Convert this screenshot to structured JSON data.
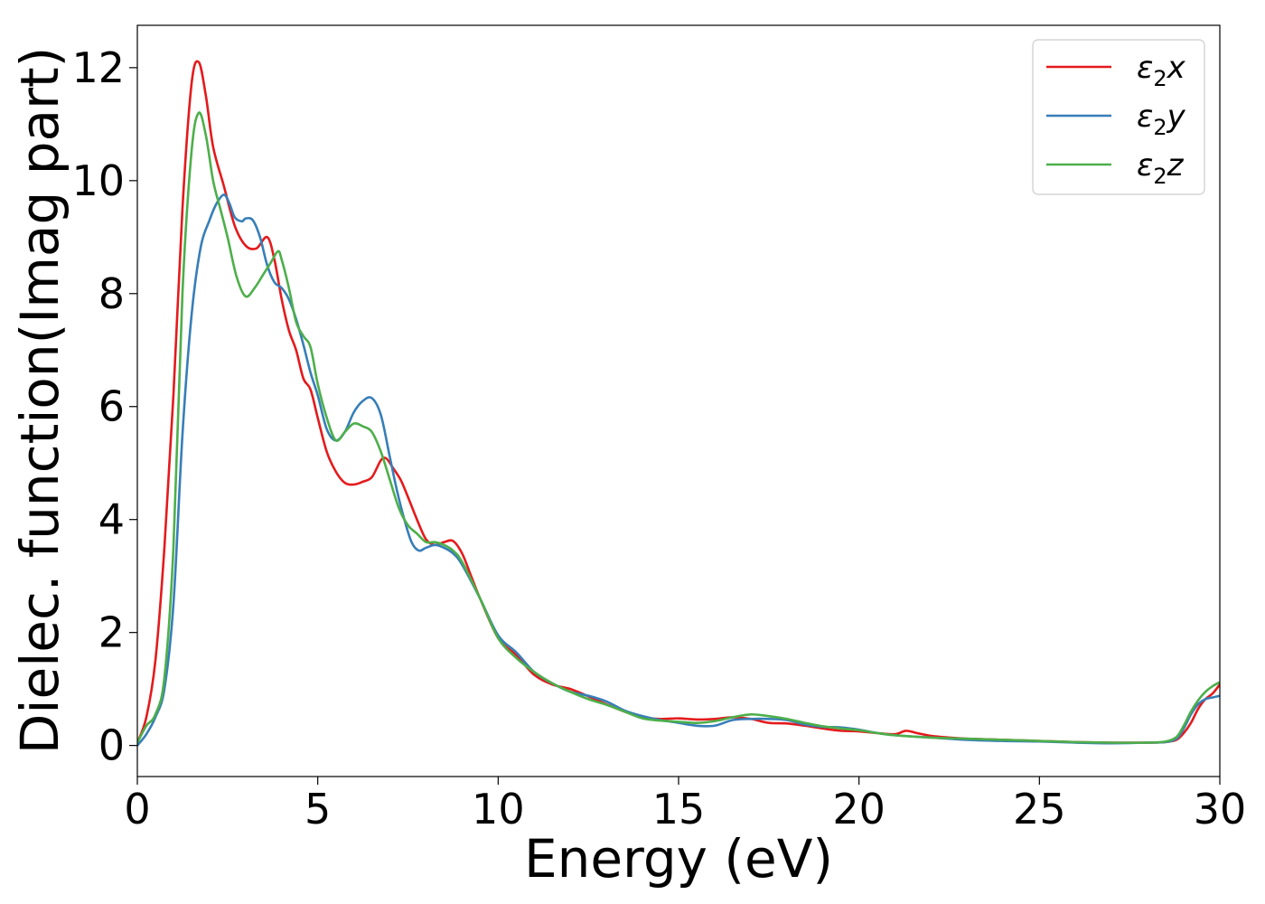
{
  "chart_data": {
    "type": "line",
    "title": "",
    "xlabel": "Energy (eV)",
    "ylabel": "Dielec. function(Imag part)",
    "xlim": [
      0,
      30
    ],
    "ylim": [
      -0.55,
      12.75
    ],
    "xticks": [
      0,
      5,
      10,
      15,
      20,
      25,
      30
    ],
    "xtick_labels": [
      "0",
      "5",
      "10",
      "15",
      "20",
      "25",
      "30"
    ],
    "yticks": [
      0,
      2,
      4,
      6,
      8,
      10,
      12
    ],
    "ytick_labels": [
      "0",
      "2",
      "4",
      "6",
      "8",
      "10",
      "12"
    ],
    "grid": false,
    "legend_position": "top-right",
    "series": [
      {
        "name": "ε2x",
        "legend_base": "ε",
        "legend_sub": "2",
        "legend_suffix": "x",
        "color": "#e41a1c",
        "x": [
          0,
          0.25,
          0.5,
          0.75,
          1.0,
          1.25,
          1.5,
          1.7,
          1.9,
          2.1,
          2.4,
          2.7,
          3.0,
          3.3,
          3.6,
          3.8,
          4.0,
          4.2,
          4.4,
          4.6,
          4.8,
          5.0,
          5.25,
          5.5,
          5.75,
          6.0,
          6.25,
          6.5,
          6.75,
          6.9,
          7.1,
          7.3,
          7.5,
          7.75,
          8.0,
          8.25,
          8.5,
          8.75,
          9.0,
          9.25,
          9.5,
          10.0,
          10.5,
          11.0,
          11.5,
          12.0,
          12.5,
          13.0,
          13.5,
          14.0,
          14.5,
          15.0,
          15.5,
          16.0,
          16.5,
          17.0,
          17.5,
          18.0,
          18.5,
          19.0,
          19.5,
          20.0,
          20.5,
          21.0,
          21.3,
          21.6,
          22.0,
          22.5,
          23.0,
          24.0,
          25.0,
          26.0,
          27.0,
          28.0,
          28.5,
          28.8,
          29.0,
          29.2,
          29.4,
          29.6,
          29.8,
          30.0
        ],
        "y": [
          0.05,
          0.5,
          1.5,
          3.5,
          6.2,
          9.5,
          11.7,
          12.1,
          11.5,
          10.6,
          9.9,
          9.2,
          8.85,
          8.8,
          9.0,
          8.6,
          7.9,
          7.35,
          7.0,
          6.5,
          6.3,
          5.8,
          5.2,
          4.85,
          4.65,
          4.62,
          4.67,
          4.75,
          5.05,
          5.08,
          4.9,
          4.7,
          4.4,
          4.0,
          3.65,
          3.55,
          3.6,
          3.62,
          3.4,
          3.0,
          2.6,
          1.9,
          1.6,
          1.25,
          1.08,
          1.0,
          0.87,
          0.73,
          0.6,
          0.5,
          0.47,
          0.48,
          0.46,
          0.47,
          0.5,
          0.47,
          0.4,
          0.39,
          0.35,
          0.3,
          0.26,
          0.25,
          0.22,
          0.2,
          0.26,
          0.22,
          0.17,
          0.14,
          0.12,
          0.1,
          0.08,
          0.06,
          0.05,
          0.05,
          0.06,
          0.1,
          0.22,
          0.4,
          0.65,
          0.82,
          0.92,
          1.08
        ]
      },
      {
        "name": "ε2y",
        "legend_base": "ε",
        "legend_sub": "2",
        "legend_suffix": "y",
        "color": "#377eb8",
        "x": [
          0,
          0.25,
          0.5,
          0.75,
          1.0,
          1.25,
          1.5,
          1.75,
          2.0,
          2.2,
          2.4,
          2.55,
          2.7,
          2.9,
          3.0,
          3.2,
          3.4,
          3.6,
          3.8,
          4.0,
          4.2,
          4.4,
          4.6,
          4.8,
          5.0,
          5.25,
          5.5,
          5.75,
          6.0,
          6.25,
          6.5,
          6.75,
          7.0,
          7.2,
          7.4,
          7.6,
          7.8,
          8.0,
          8.25,
          8.5,
          8.75,
          9.0,
          9.5,
          10.0,
          10.5,
          11.0,
          11.5,
          12.0,
          12.5,
          13.0,
          13.5,
          14.0,
          14.5,
          15.0,
          15.5,
          16.0,
          16.5,
          17.0,
          17.5,
          18.0,
          18.5,
          19.0,
          19.5,
          20.0,
          20.5,
          21.0,
          22.0,
          23.0,
          24.0,
          25.0,
          26.0,
          27.0,
          28.0,
          28.5,
          28.8,
          29.0,
          29.2,
          29.4,
          29.6,
          29.8,
          30.0
        ],
        "y": [
          0.0,
          0.2,
          0.5,
          1.0,
          2.5,
          5.5,
          7.6,
          8.8,
          9.3,
          9.6,
          9.75,
          9.6,
          9.35,
          9.28,
          9.33,
          9.3,
          9.0,
          8.5,
          8.2,
          8.1,
          7.9,
          7.55,
          7.1,
          6.6,
          6.2,
          5.6,
          5.4,
          5.55,
          5.9,
          6.1,
          6.15,
          5.85,
          5.1,
          4.5,
          4.0,
          3.6,
          3.45,
          3.5,
          3.55,
          3.5,
          3.4,
          3.2,
          2.6,
          1.95,
          1.65,
          1.3,
          1.1,
          0.95,
          0.88,
          0.78,
          0.62,
          0.52,
          0.45,
          0.4,
          0.35,
          0.35,
          0.45,
          0.47,
          0.47,
          0.45,
          0.37,
          0.33,
          0.32,
          0.28,
          0.22,
          0.18,
          0.14,
          0.1,
          0.08,
          0.07,
          0.05,
          0.04,
          0.05,
          0.06,
          0.12,
          0.3,
          0.55,
          0.73,
          0.82,
          0.85,
          0.88
        ]
      },
      {
        "name": "ε2z",
        "legend_base": "ε",
        "legend_sub": "2",
        "legend_suffix": "z",
        "color": "#4daf4a",
        "x": [
          0,
          0.25,
          0.5,
          0.75,
          1.0,
          1.25,
          1.5,
          1.7,
          1.9,
          2.1,
          2.3,
          2.5,
          2.75,
          3.0,
          3.25,
          3.5,
          3.7,
          3.9,
          4.0,
          4.2,
          4.4,
          4.6,
          4.8,
          5.0,
          5.25,
          5.5,
          5.75,
          6.0,
          6.25,
          6.5,
          6.75,
          7.0,
          7.25,
          7.5,
          7.75,
          8.0,
          8.25,
          8.5,
          8.75,
          9.0,
          9.5,
          10.0,
          10.5,
          11.0,
          11.5,
          12.0,
          12.5,
          13.0,
          13.5,
          14.0,
          14.5,
          15.0,
          15.5,
          16.0,
          16.5,
          17.0,
          17.5,
          18.0,
          18.5,
          19.0,
          19.5,
          20.0,
          20.5,
          21.0,
          22.0,
          23.0,
          24.0,
          25.0,
          26.0,
          27.0,
          28.0,
          28.5,
          28.8,
          29.0,
          29.2,
          29.4,
          29.6,
          29.8,
          30.0
        ],
        "y": [
          0.05,
          0.35,
          0.55,
          1.2,
          3.5,
          8.0,
          10.5,
          11.2,
          10.8,
          10.0,
          9.5,
          9.0,
          8.3,
          7.95,
          8.1,
          8.35,
          8.55,
          8.75,
          8.6,
          8.1,
          7.5,
          7.25,
          7.05,
          6.4,
          5.8,
          5.4,
          5.55,
          5.7,
          5.65,
          5.55,
          5.2,
          4.7,
          4.2,
          3.9,
          3.75,
          3.6,
          3.6,
          3.55,
          3.45,
          3.25,
          2.6,
          1.9,
          1.55,
          1.3,
          1.1,
          0.95,
          0.82,
          0.72,
          0.6,
          0.48,
          0.44,
          0.42,
          0.4,
          0.43,
          0.5,
          0.55,
          0.52,
          0.47,
          0.4,
          0.34,
          0.3,
          0.27,
          0.22,
          0.18,
          0.14,
          0.12,
          0.1,
          0.08,
          0.06,
          0.05,
          0.05,
          0.07,
          0.15,
          0.35,
          0.6,
          0.8,
          0.95,
          1.05,
          1.12
        ]
      }
    ]
  }
}
